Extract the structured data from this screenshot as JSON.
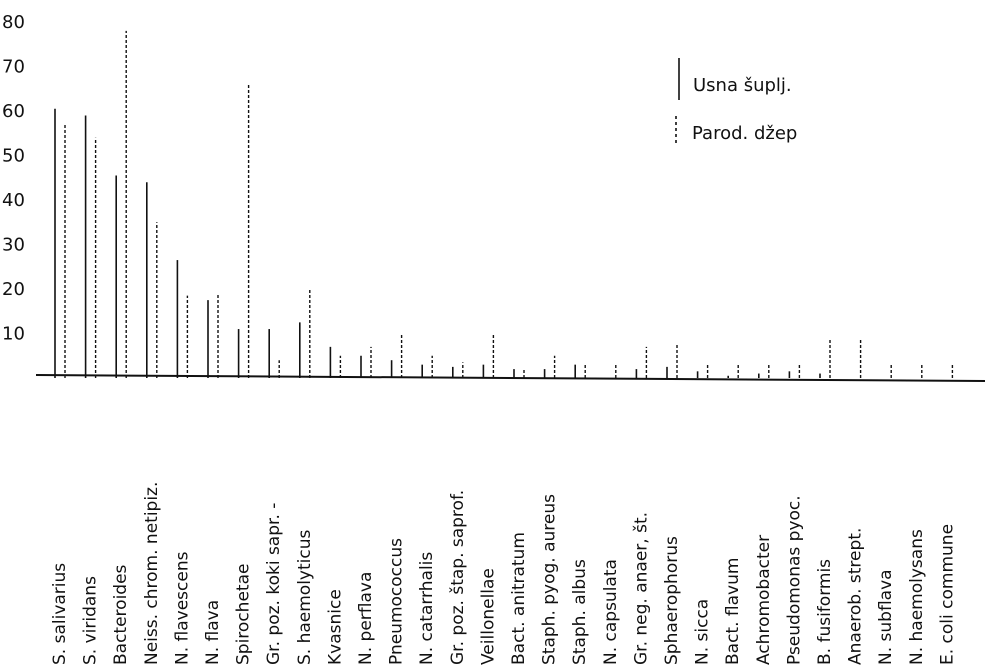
{
  "chart_data": {
    "type": "bar",
    "title": "",
    "xlabel": "",
    "ylabel": "",
    "ylim": [
      0,
      80
    ],
    "yticks": [
      10,
      20,
      30,
      40,
      50,
      60,
      70,
      80
    ],
    "grid": false,
    "legend_position": "top-right",
    "categories": [
      "S. salivarius",
      "S. viridans",
      "Bacteroides",
      "Neiss. chrom. netipiz.",
      "N. flavescens",
      "N. flava",
      "Spirochetae",
      "Gr. poz. koki sapr.  -",
      "S. haemolyticus",
      "Kvasnice",
      "N. perflava",
      "Pneumococcus",
      "N. catarrhalis",
      "Gr. poz. štap. saprof.",
      "Veillonellae",
      "Bact. anitratum",
      "Staph. pyog. aureus",
      "Staph. albus",
      "N. capsulata",
      "Gr. neg. anaer, št.",
      "Sphaerophorus",
      "N. sicca",
      "Bact. flavum",
      "Achromobacter",
      "Pseudomonas pyoc.",
      "B. fusiformis",
      "Anaerob. strept.",
      "N. subflava",
      "N. haemolysans",
      "E. coli commune"
    ],
    "series": [
      {
        "name": "Usna šuplj.",
        "style": "solid",
        "values": [
          60.5,
          59,
          45.5,
          44,
          26.5,
          17.5,
          11,
          11,
          12.5,
          7,
          5,
          4,
          3,
          2.5,
          3,
          2,
          2,
          3,
          0,
          2,
          2.5,
          1.5,
          0.5,
          1,
          1.5,
          1,
          0,
          0,
          0,
          0
        ]
      },
      {
        "name": "Parod. džep",
        "style": "dashed",
        "values": [
          57,
          54,
          78,
          35,
          18.5,
          19,
          66,
          4,
          20,
          5,
          7,
          10,
          5,
          3.5,
          10,
          2,
          5,
          3,
          3,
          7,
          7.5,
          3,
          3,
          3,
          3,
          9,
          9,
          3,
          3,
          3
        ]
      }
    ],
    "legend": {
      "entries": [
        {
          "label": "Usna šuplj.",
          "style": "solid"
        },
        {
          "label": "Parod. džep",
          "style": "dashed"
        }
      ]
    }
  }
}
